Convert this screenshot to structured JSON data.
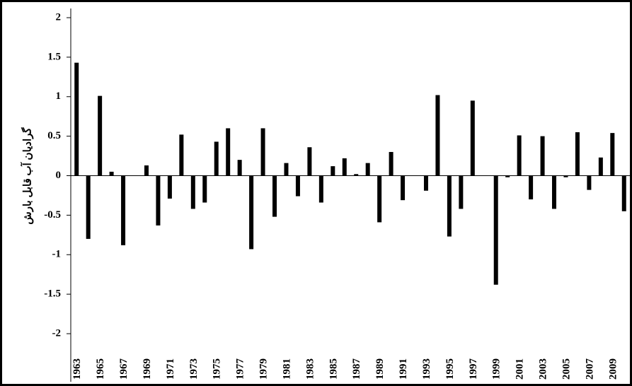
{
  "chart_data": {
    "type": "bar",
    "y_label": "گرادیان آب قابل بارش",
    "categories": [
      "1963",
      null,
      "1965",
      null,
      "1967",
      null,
      "1969",
      null,
      "1971",
      null,
      "1973",
      null,
      "1975",
      null,
      "1977",
      null,
      "1979",
      null,
      "1981",
      null,
      "1983",
      null,
      "1985",
      null,
      "1987",
      null,
      "1989",
      null,
      "1991",
      null,
      "1993",
      null,
      "1995",
      null,
      "1997",
      null,
      "1999",
      null,
      "2001",
      null,
      "2003",
      null,
      "2005",
      null,
      "2007",
      null,
      "2009",
      null
    ],
    "values": [
      1.43,
      -0.8,
      1.01,
      0.05,
      -0.88,
      0,
      0.13,
      -0.63,
      -0.29,
      0.52,
      -0.42,
      -0.34,
      0.43,
      0.6,
      0.2,
      -0.93,
      0.6,
      -0.52,
      0.16,
      -0.26,
      0.36,
      -0.34,
      0.12,
      0.22,
      0.02,
      0.16,
      -0.59,
      0.3,
      -0.31,
      0,
      -0.19,
      1.02,
      -0.77,
      -0.42,
      0.95,
      0,
      -1.38,
      -0.02,
      0.51,
      -0.3,
      0.5,
      -0.42,
      -0.02,
      0.55,
      -0.18,
      0.23,
      0.54,
      -0.45
    ],
    "color": "#000000",
    "ylim": [
      -2,
      2
    ],
    "yticks": [
      -2,
      -1.5,
      -1,
      -0.5,
      0,
      0.5,
      1,
      1.5,
      2
    ],
    "grid": false
  }
}
